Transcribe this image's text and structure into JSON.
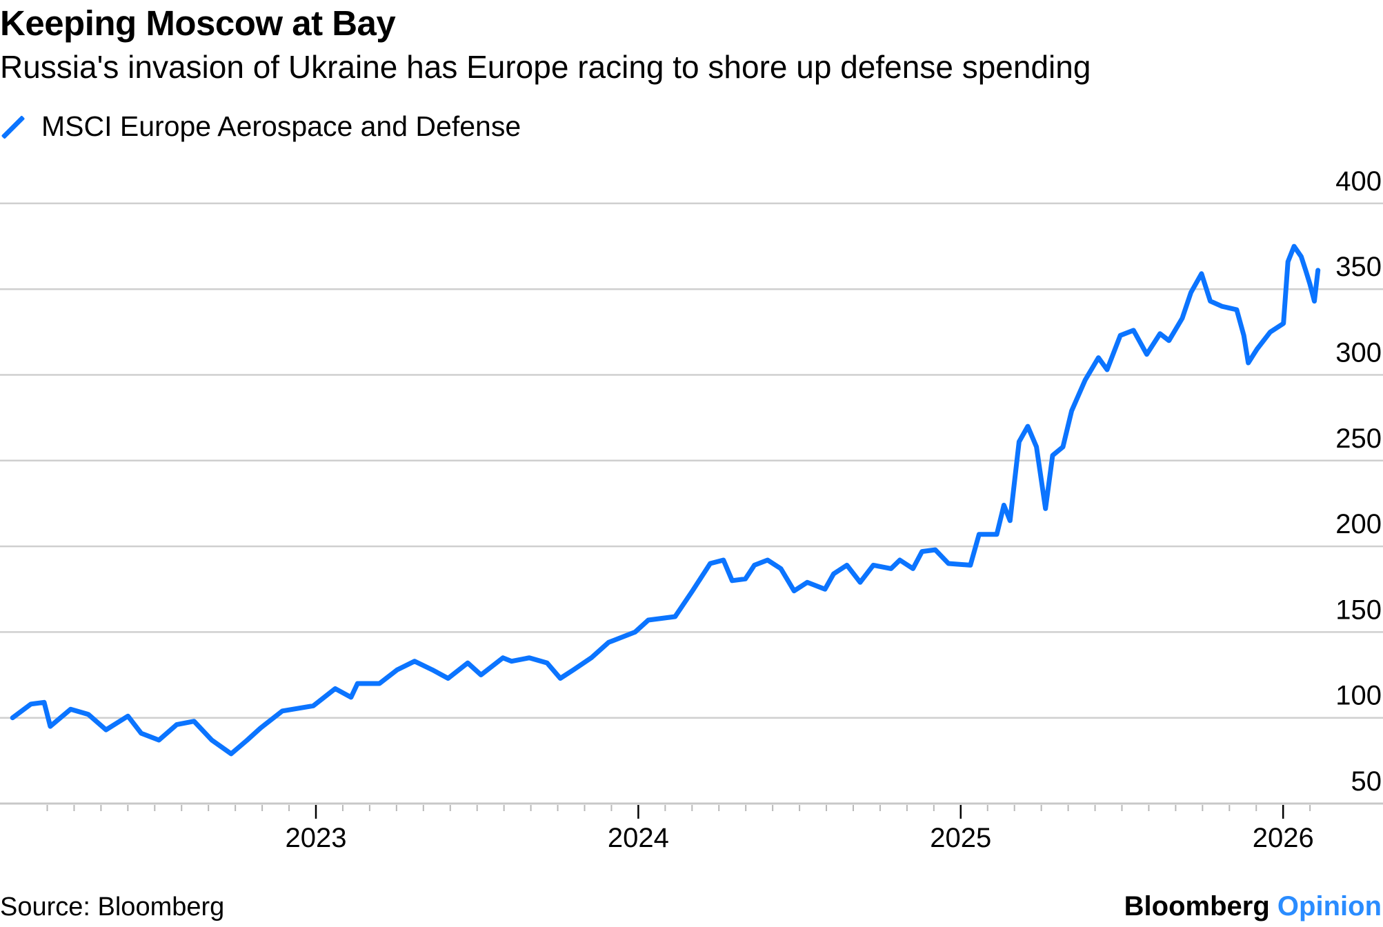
{
  "title": "Keeping Moscow at Bay",
  "subtitle": "Russia's invasion of Ukraine has Europe racing to shore up defense spending",
  "legend": {
    "label": "MSCI Europe Aerospace and Defense",
    "color": "#0b74ff",
    "icon": "diagonal-line-swatch"
  },
  "footer": {
    "source": "Source: Bloomberg",
    "brand": "Bloomberg",
    "brand_suffix": "Opinion",
    "brand_suffix_color": "#2a8cff"
  },
  "chart_data": {
    "type": "line",
    "title": "Keeping Moscow at Bay",
    "xlabel": "",
    "ylabel": "",
    "ylim": [
      50,
      400
    ],
    "yticks": [
      "400",
      "350",
      "300",
      "250",
      "200",
      "150",
      "100",
      "50"
    ],
    "xticks": [
      "2023",
      "2024",
      "2025",
      "2026"
    ],
    "xlim": [
      2022.0,
      2026.25
    ],
    "grid": true,
    "legend_position": "top-left",
    "series": [
      {
        "name": "MSCI Europe Aerospace and Defense",
        "color": "#0b74ff",
        "x": [
          2022.059,
          2022.116,
          2022.157,
          2022.176,
          2022.239,
          2022.294,
          2022.349,
          2022.417,
          2022.458,
          2022.513,
          2022.568,
          2022.622,
          2022.677,
          2022.737,
          2022.787,
          2022.828,
          2022.896,
          2022.992,
          2023.06,
          2023.109,
          2023.129,
          2023.197,
          2023.252,
          2023.306,
          2023.361,
          2023.41,
          2023.471,
          2023.512,
          2023.58,
          2023.607,
          2023.662,
          2023.717,
          2023.758,
          2023.799,
          2023.854,
          2023.908,
          2023.99,
          2024.031,
          2024.114,
          2024.168,
          2024.223,
          2024.264,
          2024.291,
          2024.332,
          2024.36,
          2024.401,
          2024.442,
          2024.483,
          2024.524,
          2024.579,
          2024.606,
          2024.647,
          2024.688,
          2024.729,
          2024.784,
          2024.811,
          2024.852,
          2024.88,
          2024.921,
          2024.962,
          2025.03,
          2025.057,
          2025.112,
          2025.134,
          2025.153,
          2025.181,
          2025.208,
          2025.235,
          2025.263,
          2025.285,
          2025.317,
          2025.344,
          2025.386,
          2025.427,
          2025.454,
          2025.495,
          2025.536,
          2025.577,
          2025.618,
          2025.646,
          2025.687,
          2025.714,
          2025.747,
          2025.774,
          2025.81,
          2025.856,
          2025.878,
          2025.892,
          2025.919,
          2025.96,
          2026.001,
          2026.015,
          2026.034,
          2026.056,
          2026.07,
          2026.083,
          2026.097,
          2026.108
        ],
        "values": [
          100,
          108,
          109,
          95,
          105,
          102,
          93,
          101,
          91,
          87,
          96,
          98,
          87,
          79,
          87,
          94,
          104,
          107,
          117,
          112,
          120,
          120,
          128,
          133,
          128,
          123,
          132,
          125,
          135,
          133,
          135,
          132,
          123,
          128,
          135,
          144,
          150,
          157,
          159,
          174,
          190,
          192,
          180,
          181,
          189,
          192,
          187,
          174,
          179,
          175,
          184,
          189,
          179,
          189,
          187,
          192,
          187,
          197,
          198,
          190,
          189,
          207,
          207,
          224,
          215,
          261,
          270,
          258,
          222,
          253,
          258,
          279,
          297,
          310,
          303,
          323,
          326,
          312,
          324,
          320,
          333,
          348,
          359,
          343,
          340,
          338,
          323,
          307,
          315,
          325,
          330,
          366,
          375,
          369,
          361,
          353,
          343,
          361
        ]
      }
    ]
  }
}
